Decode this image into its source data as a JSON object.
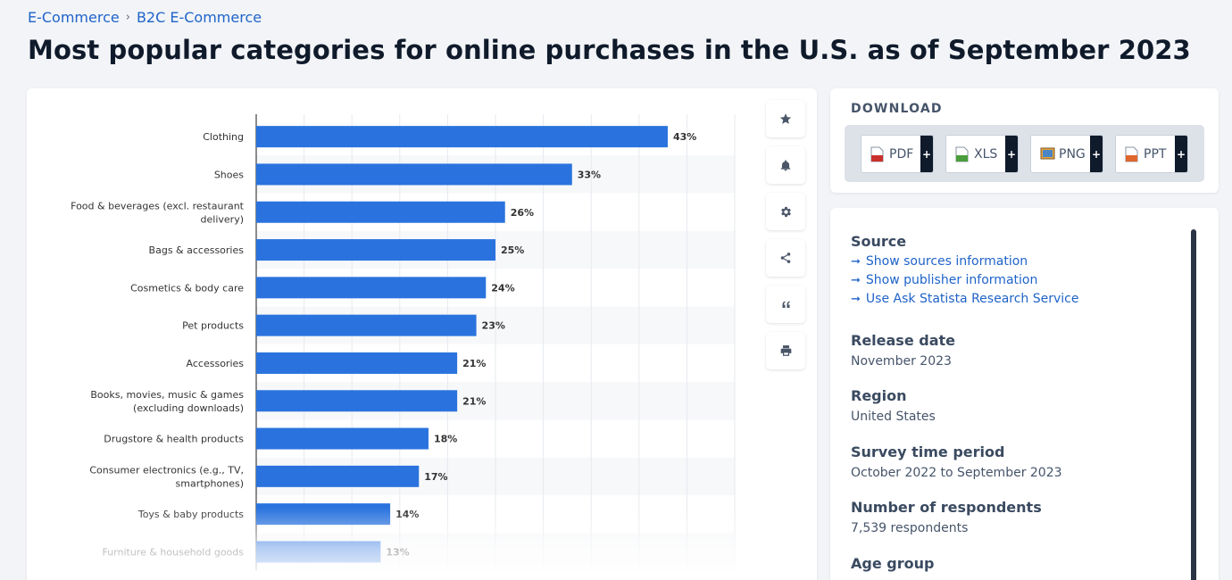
{
  "breadcrumb": {
    "items": [
      "E-Commerce",
      "B2C E-Commerce"
    ],
    "separator": "›"
  },
  "page_title": "Most popular categories for online purchases in the U.S. as of September 2023",
  "toolbar": {
    "icons": [
      "star-icon",
      "bell-icon",
      "gear-icon",
      "share-icon",
      "quote-icon",
      "print-icon"
    ]
  },
  "download": {
    "title": "DOWNLOAD",
    "buttons": [
      {
        "label": "PDF",
        "plus": "+",
        "icon": "pdf-file-icon"
      },
      {
        "label": "XLS",
        "plus": "+",
        "icon": "xls-file-icon"
      },
      {
        "label": "PNG",
        "plus": "+",
        "icon": "png-file-icon"
      },
      {
        "label": "PPT",
        "plus": "+",
        "icon": "ppt-file-icon"
      }
    ]
  },
  "info": {
    "source_heading": "Source",
    "source_links": [
      "Show sources information",
      "Show publisher information",
      "Use Ask Statista Research Service"
    ],
    "release_heading": "Release date",
    "release_value": "November 2023",
    "region_heading": "Region",
    "region_value": "United States",
    "survey_heading": "Survey time period",
    "survey_value": "October 2022 to September 2023",
    "respondents_heading": "Number of respondents",
    "respondents_value": "7,539 respondents",
    "age_heading": "Age group"
  },
  "colors": {
    "bar": "#2a73de",
    "link": "#1f63c9",
    "title": "#0f1a2b",
    "band": "#f7f8fa",
    "grid": "#e6e9ee"
  },
  "chart_data": {
    "type": "bar",
    "orientation": "horizontal",
    "categories": [
      [
        "Clothing"
      ],
      [
        "Shoes"
      ],
      [
        "Food & beverages (excl. restaurant",
        "delivery)"
      ],
      [
        "Bags & accessories"
      ],
      [
        "Cosmetics & body care"
      ],
      [
        "Pet products"
      ],
      [
        "Accessories"
      ],
      [
        "Books, movies, music & games",
        "(excluding downloads)"
      ],
      [
        "Drugstore & health products"
      ],
      [
        "Consumer electronics (e.g., TV,",
        "smartphones)"
      ],
      [
        "Toys & baby products"
      ],
      [
        "Furniture & household goods"
      ]
    ],
    "values": [
      43,
      33,
      26,
      25,
      24,
      23,
      21,
      21,
      18,
      17,
      14,
      13
    ],
    "value_labels": [
      "43%",
      "33%",
      "26%",
      "25%",
      "24%",
      "23%",
      "21%",
      "21%",
      "18%",
      "17%",
      "14%",
      "13%"
    ],
    "xlim": [
      0,
      50
    ],
    "grid": true,
    "legend": "none"
  }
}
